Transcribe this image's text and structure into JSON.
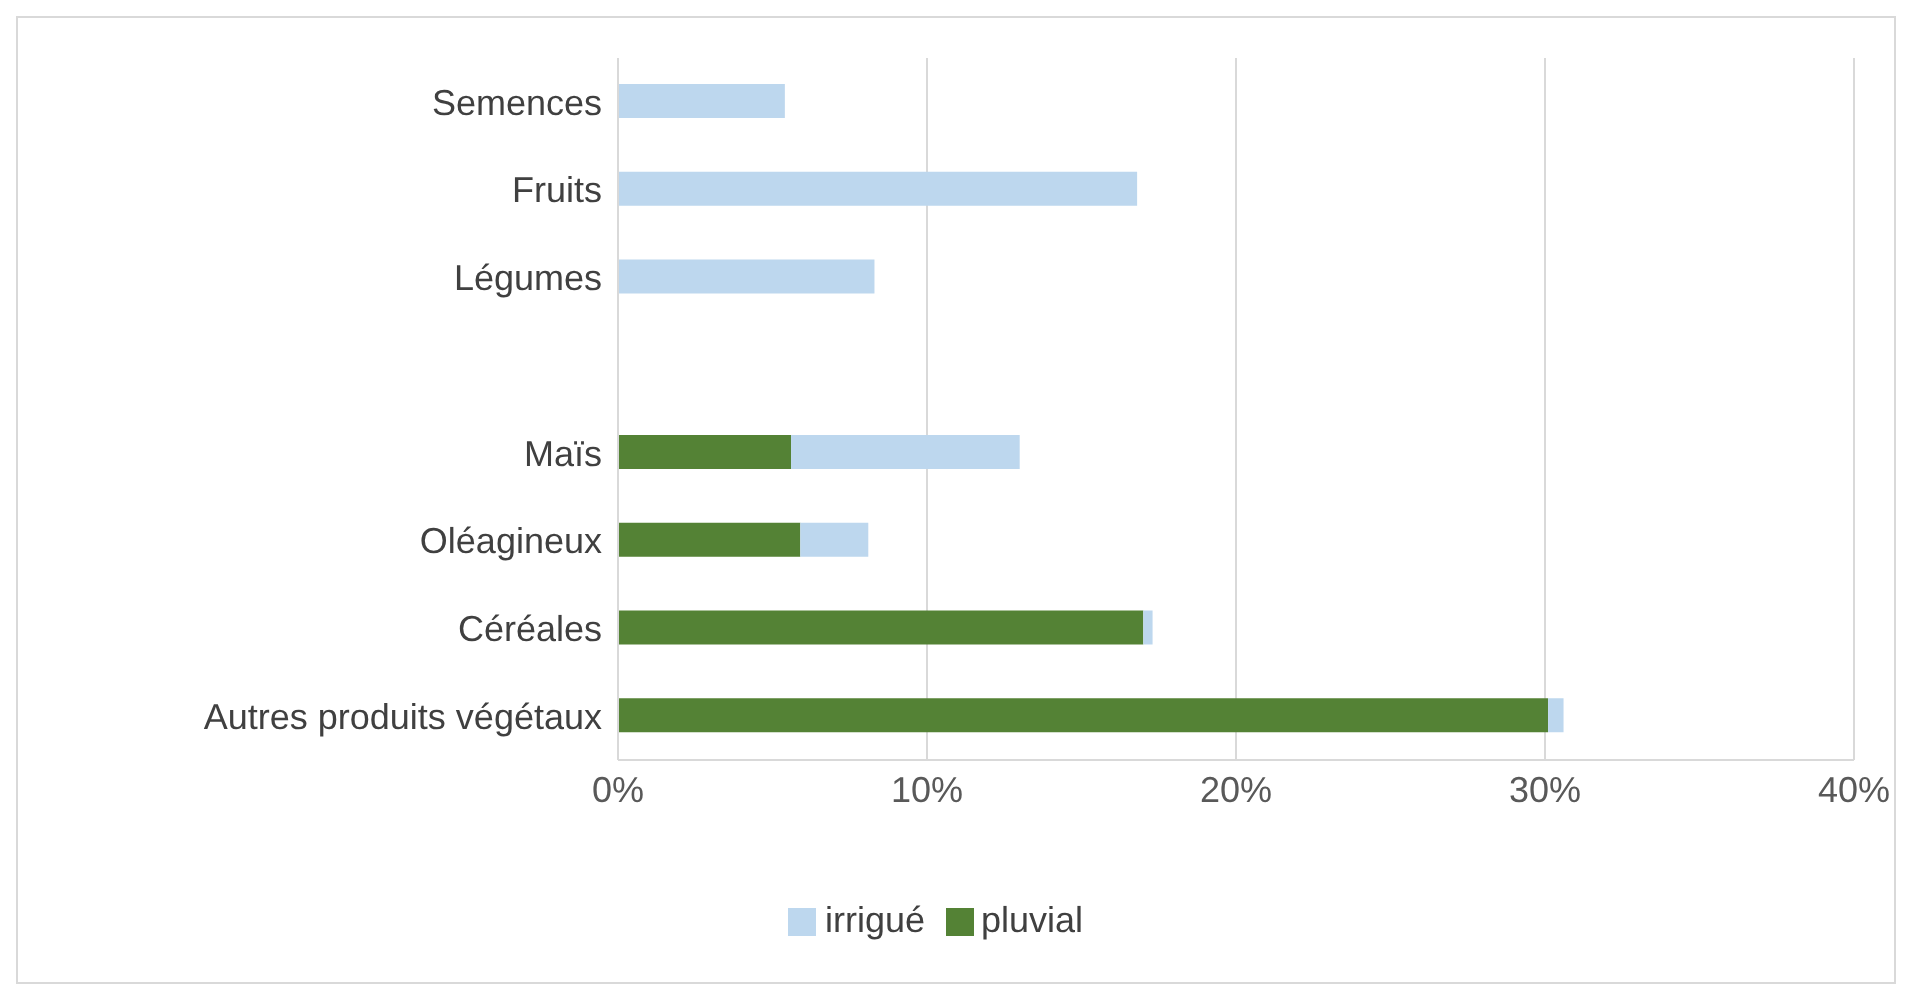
{
  "chart_data": {
    "type": "bar",
    "orientation": "horizontal",
    "stacked": true,
    "categories": [
      "Semences",
      "Fruits",
      "Légumes",
      null,
      "Maïs",
      "Oléagineux",
      "Céréales",
      "Autres produits végétaux"
    ],
    "series": [
      {
        "name": "pluvial",
        "color": "#548235",
        "values": [
          null,
          null,
          null,
          null,
          5.6,
          5.9,
          17.0,
          30.1
        ]
      },
      {
        "name": "irrigué",
        "color": "#bdd7ee",
        "values": [
          5.4,
          16.8,
          8.3,
          null,
          7.4,
          2.2,
          0.3,
          0.5
        ]
      }
    ],
    "xlim": [
      0,
      40
    ],
    "xticks": [
      {
        "value": 0,
        "label": "0%"
      },
      {
        "value": 10,
        "label": "10%"
      },
      {
        "value": 20,
        "label": "20%"
      },
      {
        "value": 30,
        "label": "30%"
      },
      {
        "value": 40,
        "label": "40%"
      }
    ],
    "grid": "x",
    "legend": "bottom"
  }
}
